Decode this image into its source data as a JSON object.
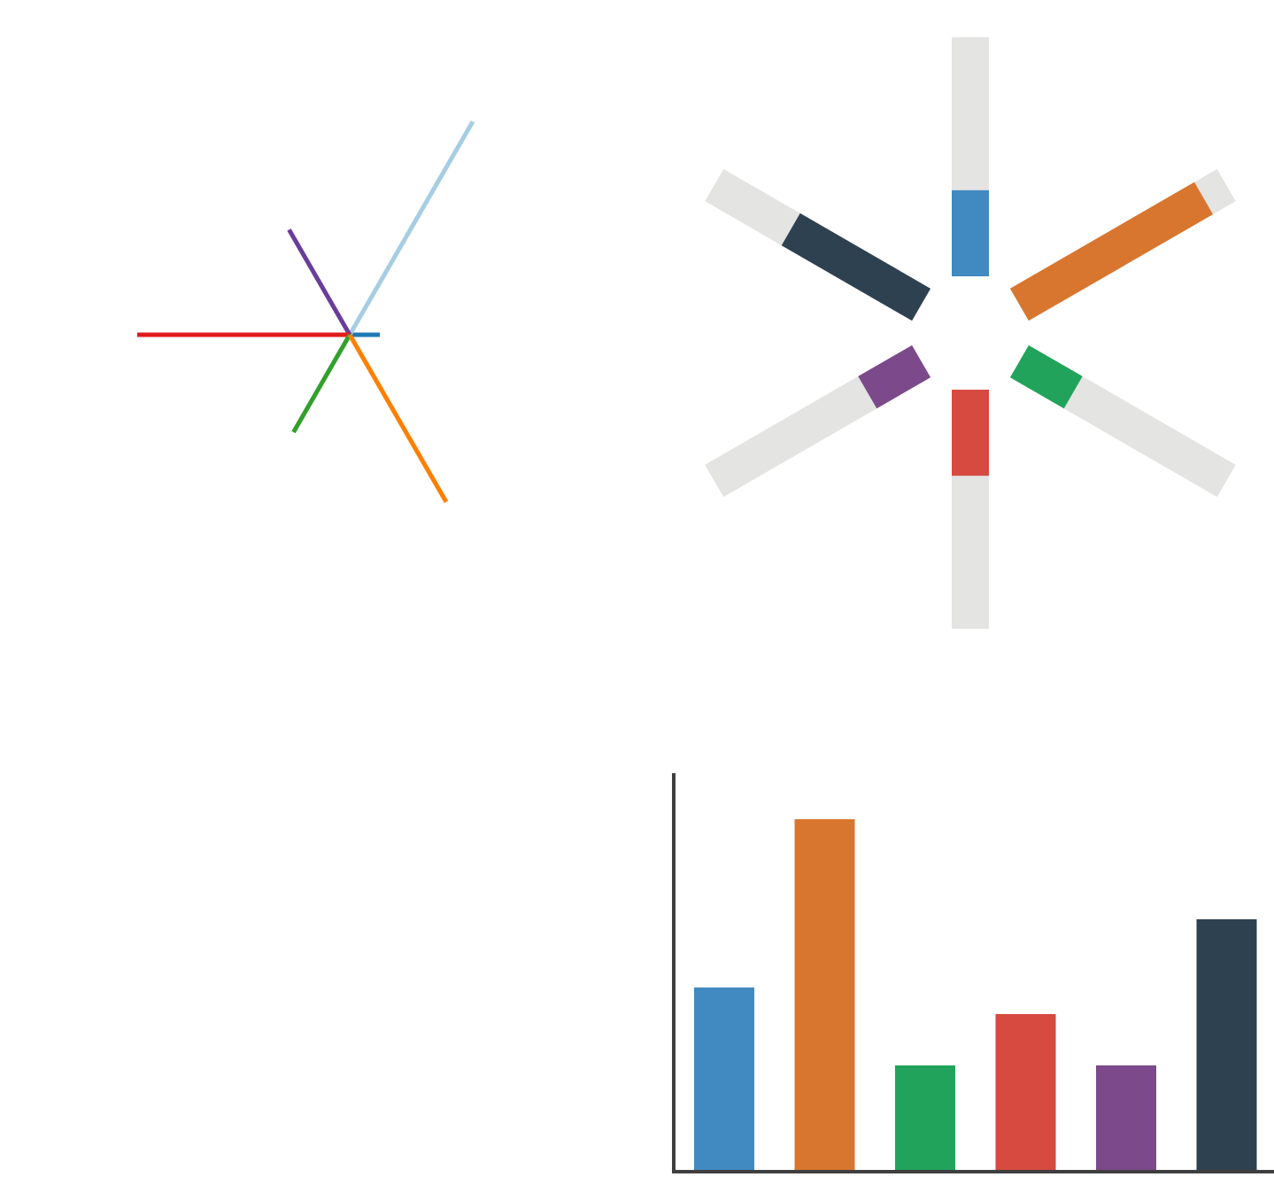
{
  "chart_data": [
    {
      "type": "star",
      "direction_order": [
        "right",
        "upper-right",
        "upper-left",
        "left",
        "lower-left",
        "lower-right"
      ],
      "values": [
        34,
        278,
        137,
        240,
        127,
        218
      ],
      "colors": [
        "#1f78b4",
        "#a6cee3",
        "#6a3d9a",
        "#e31a1c",
        "#33a02c",
        "#ff7f00"
      ]
    },
    {
      "type": "radial-bar",
      "direction_order": [
        "up",
        "upper-right",
        "lower-right",
        "down",
        "lower-left",
        "upper-left"
      ],
      "values": [
        0.36,
        0.89,
        0.26,
        0.36,
        0.26,
        0.63
      ],
      "max": 1,
      "colors": [
        "#4189c1",
        "#d8762f",
        "#22a35c",
        "#d64a40",
        "#7c4a8b",
        "#2e4150"
      ],
      "track_color": "#e4e4e2"
    },
    {
      "type": "bar",
      "values": [
        208,
        398,
        120,
        178,
        120,
        285
      ],
      "ylim": [
        0,
        450
      ],
      "colors": [
        "#4189c1",
        "#d8762f",
        "#22a35c",
        "#d64a40",
        "#7c4a8b",
        "#2e4150"
      ],
      "axis_color": "#3f3f3f"
    }
  ]
}
